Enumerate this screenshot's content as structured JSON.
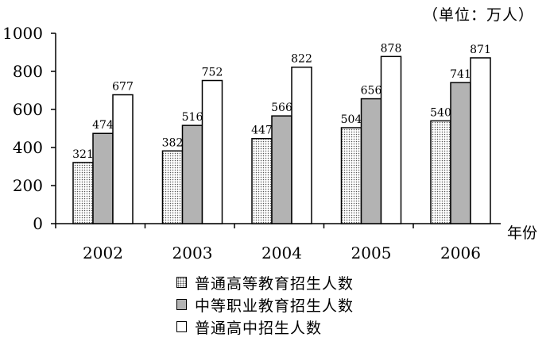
{
  "chart_data": {
    "type": "bar",
    "unit_label": "（单位：万人）",
    "xlabel": "年份",
    "categories": [
      "2002",
      "2003",
      "2004",
      "2005",
      "2006"
    ],
    "ylim": [
      0,
      1000
    ],
    "yticks": [
      0,
      200,
      400,
      600,
      800,
      1000
    ],
    "series": [
      {
        "name": "普通高等教育招生人数",
        "values": [
          321,
          382,
          447,
          504,
          540
        ],
        "fill": "dotted"
      },
      {
        "name": "中等职业教育招生人数",
        "values": [
          474,
          516,
          566,
          656,
          741
        ],
        "fill": "#b3b3b3"
      },
      {
        "name": "普通高中招生人数",
        "values": [
          677,
          752,
          822,
          878,
          871
        ],
        "fill": "#ffffff"
      }
    ],
    "legend_position": "bottom",
    "grid": false
  }
}
